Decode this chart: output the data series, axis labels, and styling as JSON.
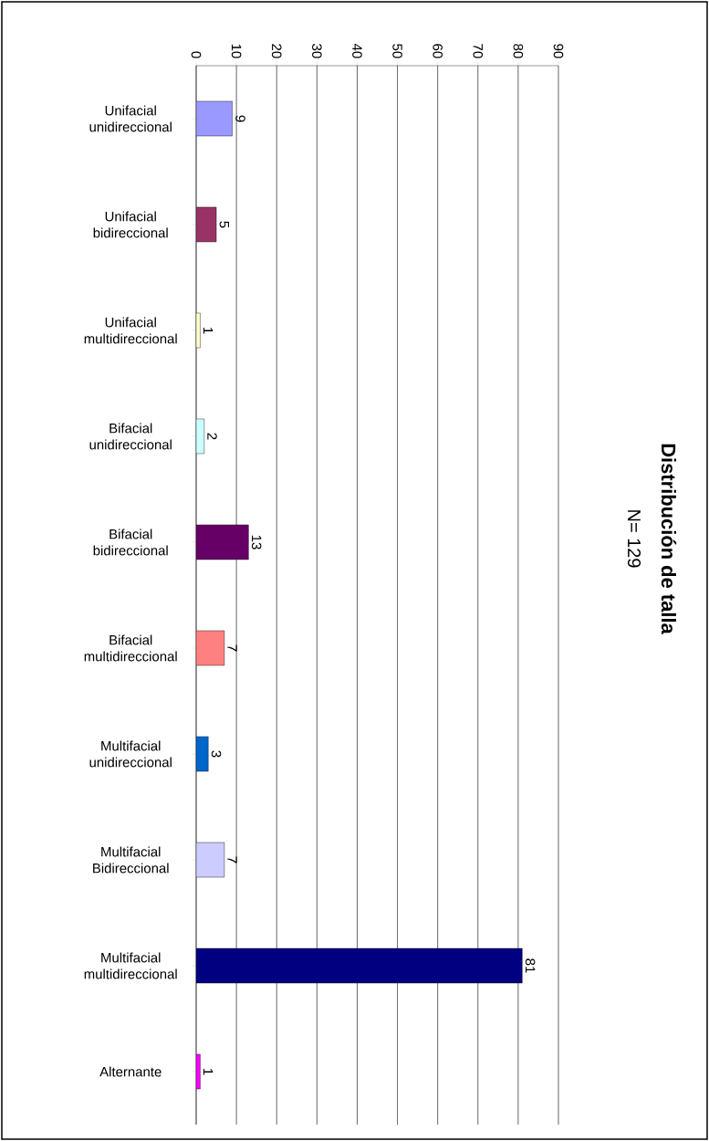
{
  "chart_data": {
    "type": "bar",
    "orientation": "horizontal",
    "title": "Distribución de talla",
    "subtitle": "N= 129",
    "categories": [
      "Unifacial unidireccional",
      "Unifacial bidireccional",
      "Unifacial multidireccional",
      "Bifacial unidireccional",
      "Bifacial bidireccional",
      "Bifacial multidireccional",
      "Multifacial unidireccional",
      "Multifacial Bidireccional",
      "Multifacial multidireccional",
      "Alternante"
    ],
    "values": [
      9,
      5,
      1,
      2,
      13,
      7,
      3,
      7,
      81,
      1
    ],
    "colors": [
      "#9999ff",
      "#993366",
      "#ffffcc",
      "#ccffff",
      "#660066",
      "#ff8080",
      "#0066cc",
      "#ccccff",
      "#000080",
      "#ff00ff"
    ],
    "xlim": [
      0,
      90
    ],
    "xticks": [
      0,
      10,
      20,
      30,
      40,
      50,
      60,
      70,
      80,
      90
    ],
    "grid": "x",
    "data_labels": true
  }
}
